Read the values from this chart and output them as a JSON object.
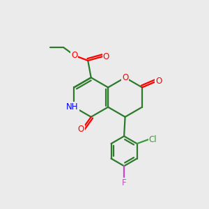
{
  "bg_color": "#ebebeb",
  "bond_color": "#2d7a2d",
  "bond_width": 1.6,
  "atom_colors": {
    "O": "#ff0000",
    "N": "#0000ff",
    "Cl": "#3a9a3a",
    "F": "#cc44cc",
    "C": "#2d7a2d",
    "H": "#2d7a2d"
  },
  "font_size": 8.5
}
